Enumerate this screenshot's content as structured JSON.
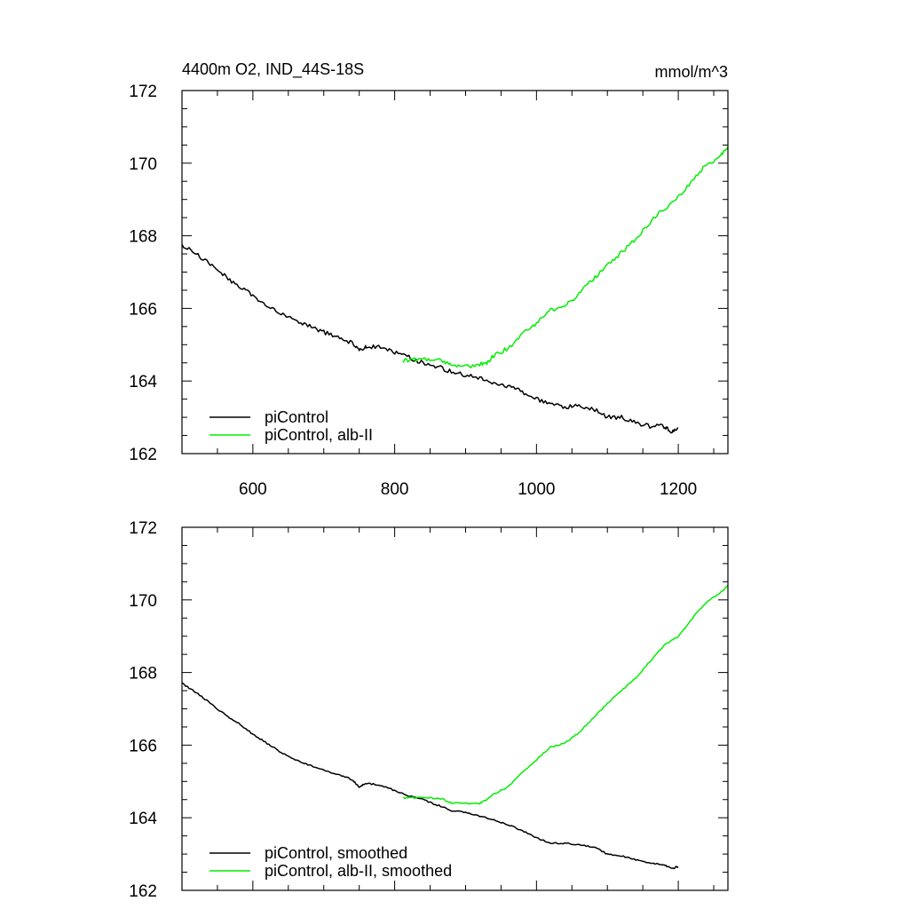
{
  "chart_data": [
    {
      "type": "line",
      "title": "4400m O2, IND_44S-18S",
      "units": "mmol/m^3",
      "xlim": [
        500,
        1270
      ],
      "ylim": [
        162,
        172
      ],
      "xticks": [
        600,
        800,
        1000,
        1200
      ],
      "yticks": [
        162,
        164,
        166,
        168,
        170,
        172
      ],
      "x_tick_labels_visible": true,
      "grid": false,
      "legend_position": "bottom-left",
      "series": [
        {
          "name": "piControl",
          "color": "#000000",
          "x": [
            500,
            520,
            540,
            560,
            580,
            600,
            620,
            640,
            660,
            680,
            700,
            720,
            740,
            750,
            760,
            780,
            800,
            820,
            840,
            860,
            880,
            900,
            920,
            940,
            960,
            980,
            1000,
            1020,
            1040,
            1060,
            1080,
            1100,
            1120,
            1140,
            1160,
            1180,
            1190,
            1200
          ],
          "y": [
            167.75,
            167.5,
            167.2,
            166.9,
            166.6,
            166.35,
            166.1,
            165.85,
            165.65,
            165.5,
            165.35,
            165.2,
            165.05,
            164.85,
            164.95,
            164.95,
            164.8,
            164.65,
            164.5,
            164.4,
            164.25,
            164.15,
            164.1,
            163.95,
            163.85,
            163.7,
            163.5,
            163.35,
            163.3,
            163.3,
            163.25,
            163.0,
            163.0,
            162.85,
            162.75,
            162.75,
            162.6,
            162.7
          ]
        },
        {
          "name": "piControl, alb-II",
          "color": "#00ee00",
          "x": [
            812,
            830,
            850,
            870,
            880,
            900,
            920,
            930,
            940,
            960,
            980,
            1000,
            1020,
            1040,
            1060,
            1080,
            1100,
            1120,
            1140,
            1160,
            1180,
            1200,
            1220,
            1240,
            1260,
            1270
          ],
          "y": [
            164.55,
            164.6,
            164.6,
            164.55,
            164.4,
            164.4,
            164.45,
            164.5,
            164.7,
            164.9,
            165.3,
            165.6,
            165.95,
            166.05,
            166.4,
            166.8,
            167.2,
            167.55,
            167.9,
            168.35,
            168.75,
            169.05,
            169.55,
            169.95,
            170.2,
            170.45
          ]
        }
      ]
    },
    {
      "type": "line",
      "xlim": [
        500,
        1270
      ],
      "ylim": [
        162,
        172
      ],
      "xticks": [
        600,
        800,
        1000,
        1200
      ],
      "yticks": [
        162,
        164,
        166,
        168,
        170,
        172
      ],
      "x_tick_labels_visible": false,
      "grid": false,
      "legend_position": "bottom-left",
      "series": [
        {
          "name": "piControl, smoothed",
          "color": "#000000",
          "x": [
            500,
            520,
            540,
            560,
            580,
            600,
            620,
            640,
            660,
            680,
            700,
            720,
            740,
            750,
            760,
            780,
            800,
            820,
            840,
            860,
            880,
            900,
            920,
            940,
            960,
            980,
            1000,
            1020,
            1040,
            1060,
            1080,
            1100,
            1120,
            1140,
            1160,
            1180,
            1190,
            1200
          ],
          "y": [
            167.7,
            167.45,
            167.15,
            166.85,
            166.6,
            166.3,
            166.05,
            165.8,
            165.6,
            165.45,
            165.3,
            165.2,
            165.05,
            164.85,
            164.95,
            164.9,
            164.75,
            164.6,
            164.5,
            164.35,
            164.2,
            164.15,
            164.05,
            163.95,
            163.8,
            163.65,
            163.45,
            163.3,
            163.3,
            163.25,
            163.2,
            163.0,
            162.95,
            162.85,
            162.75,
            162.7,
            162.6,
            162.65
          ]
        },
        {
          "name": "piControl, alb-II, smoothed",
          "color": "#00ee00",
          "x": [
            812,
            830,
            850,
            870,
            880,
            900,
            920,
            930,
            940,
            960,
            980,
            1000,
            1020,
            1040,
            1060,
            1080,
            1100,
            1120,
            1140,
            1160,
            1180,
            1200,
            1220,
            1240,
            1260,
            1270
          ],
          "y": [
            164.55,
            164.55,
            164.55,
            164.5,
            164.4,
            164.4,
            164.4,
            164.5,
            164.65,
            164.85,
            165.25,
            165.6,
            165.95,
            166.05,
            166.35,
            166.75,
            167.15,
            167.5,
            167.85,
            168.3,
            168.75,
            169.0,
            169.5,
            169.95,
            170.2,
            170.4
          ]
        }
      ]
    }
  ]
}
